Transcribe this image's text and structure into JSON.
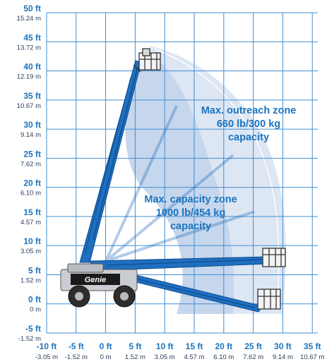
{
  "y_axis": [
    {
      "ft": "50 ft",
      "m": "15.24 m"
    },
    {
      "ft": "45 ft",
      "m": "13.72 m"
    },
    {
      "ft": "40 ft",
      "m": "12.19 m"
    },
    {
      "ft": "35 ft",
      "m": "10.67 m"
    },
    {
      "ft": "30 ft",
      "m": "9.14 m"
    },
    {
      "ft": "25 ft",
      "m": "7.62 m"
    },
    {
      "ft": "20 ft",
      "m": "6.10 m"
    },
    {
      "ft": "15 ft",
      "m": "4.57 m"
    },
    {
      "ft": "10 ft",
      "m": "3.05 m"
    },
    {
      "ft": "5 ft",
      "m": "1.52 m"
    },
    {
      "ft": "0 ft",
      "m": "0 m"
    },
    {
      "ft": "-5 ft",
      "m": "-1.52 m"
    }
  ],
  "x_axis": [
    {
      "ft": "-10 ft",
      "m": "-3.05 m"
    },
    {
      "ft": "-5 ft",
      "m": "-1.52 m"
    },
    {
      "ft": "0 ft",
      "m": "0 m"
    },
    {
      "ft": "5 ft",
      "m": "1.52 m"
    },
    {
      "ft": "10 ft",
      "m": "3.05 m"
    },
    {
      "ft": "15 ft",
      "m": "4.57 m"
    },
    {
      "ft": "20 ft",
      "m": "6.10 m"
    },
    {
      "ft": "25 ft",
      "m": "7.62 m"
    },
    {
      "ft": "30 ft",
      "m": "9.14 m"
    },
    {
      "ft": "35 ft",
      "m": "10.67 m"
    }
  ],
  "zones": {
    "outreach": {
      "line1": "Max. outreach zone",
      "line2": "660 lb/300 kg",
      "line3": "capacity"
    },
    "capacity": {
      "line1": "Max. capacity zone",
      "line2": "1000 lb/454 kg",
      "line3": "capacity"
    }
  },
  "machine": {
    "brand": "Genie"
  },
  "colors": {
    "grid": "#3f8fd4",
    "label_blue": "#1a74bf",
    "metric_text": "#2b3c5a",
    "boom_blue": "#1f6fc0",
    "outreach_zone": "#dde6f3",
    "capacity_zone": "#c6d6ec",
    "chassis": "#c9ccd1",
    "tire": "#2d2d2d"
  }
}
